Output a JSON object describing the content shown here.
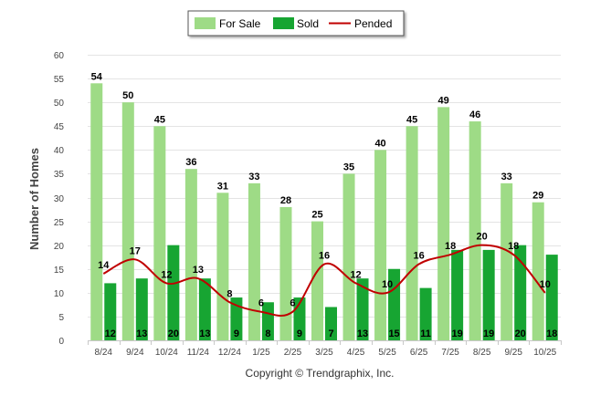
{
  "colors": {
    "for_sale": "#9edb86",
    "sold": "#17a532",
    "pended": "#c00000",
    "grid": "#e4e4e4"
  },
  "copyright": "Copyright © Trendgraphix, Inc.",
  "chart_data": {
    "type": "bar",
    "title": "",
    "xlabel": "",
    "ylabel": "Number of Homes",
    "ylim": [
      0,
      60
    ],
    "yticks": [
      0,
      5,
      10,
      15,
      20,
      25,
      30,
      35,
      40,
      45,
      50,
      55,
      60
    ],
    "grid": true,
    "legend_position": "top-center",
    "categories": [
      "8/24",
      "9/24",
      "10/24",
      "11/24",
      "12/24",
      "1/25",
      "2/25",
      "3/25",
      "4/25",
      "5/25",
      "6/25",
      "7/25",
      "8/25",
      "9/25",
      "10/25"
    ],
    "series": [
      {
        "name": "For Sale",
        "type": "bar",
        "values": [
          54,
          50,
          45,
          36,
          31,
          33,
          28,
          25,
          35,
          40,
          45,
          49,
          46,
          33,
          29
        ]
      },
      {
        "name": "Sold",
        "type": "bar",
        "values": [
          12,
          13,
          20,
          13,
          9,
          8,
          9,
          7,
          13,
          15,
          11,
          19,
          19,
          20,
          18
        ]
      },
      {
        "name": "Pended",
        "type": "line",
        "values": [
          14,
          17,
          12,
          13,
          8,
          6,
          6,
          16,
          12,
          10,
          16,
          18,
          20,
          18,
          10
        ]
      }
    ]
  }
}
